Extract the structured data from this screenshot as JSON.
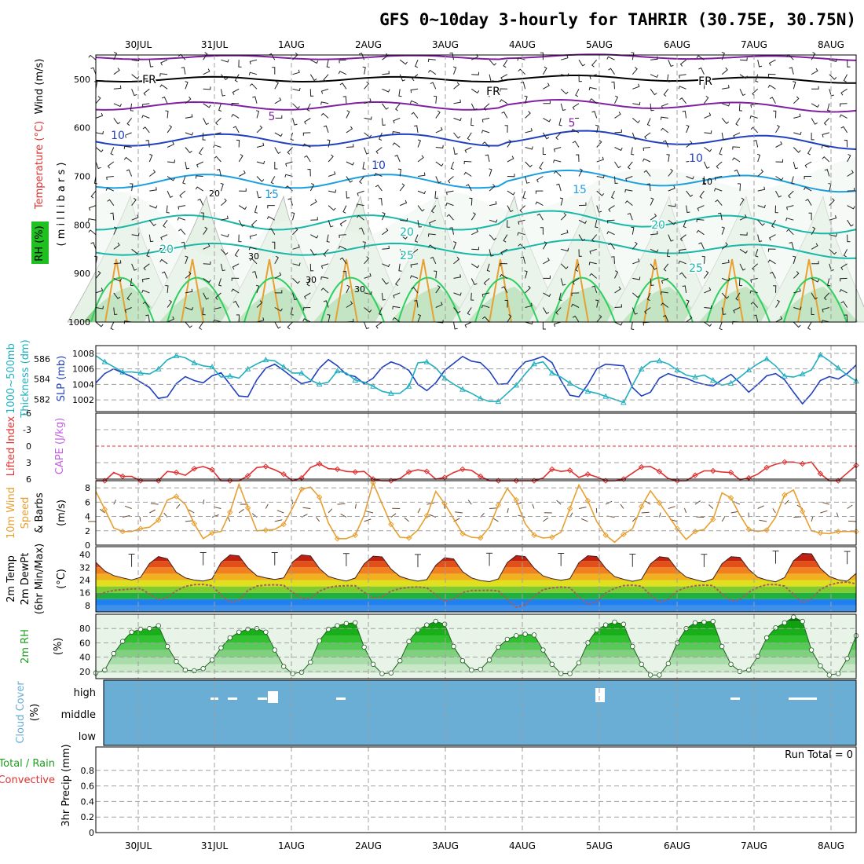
{
  "title": "GFS 0~10day 3-hourly for TAHRIR (30.75E, 30.75N)",
  "dates": [
    "30JUL",
    "31JUL",
    "1AUG",
    "2AUG",
    "3AUG",
    "4AUG",
    "5AUG",
    "6AUG",
    "7AUG",
    "8AUG"
  ],
  "run_total": "Run Total = 0",
  "colors": {
    "orange": "#e8a030",
    "green": "#20a020",
    "blue": "#2040c0",
    "cyan": "#20b0c0",
    "red": "#e03030",
    "purple": "#8020a0",
    "violet": "#c060e0",
    "cloud": "#6aaed6"
  },
  "panels": {
    "upper": {
      "labels": {
        "wind": "Wind (m/s)",
        "temperature": "Temperature (°C)",
        "rh": "RH (%)",
        "pressure": "( m i l l i b a r s )"
      },
      "pressure_ticks": [
        "500",
        "600",
        "700",
        "800",
        "900",
        "1000"
      ],
      "contour_labels": {
        "fr": "FR",
        "t5": "5",
        "t10": "10",
        "t15": "15",
        "t20": "20",
        "t25": "25",
        "rh10": "10",
        "rh20": "20",
        "rh30": "30"
      }
    },
    "pressure": {
      "labels": {
        "thickness": "1000~500mb",
        "thickness2": "Thickness (dm)",
        "slp": "SLP (mb)"
      },
      "thickness_ticks": [
        "586",
        "584",
        "582"
      ],
      "slp_ticks": [
        "1008",
        "1006",
        "1004",
        "1002"
      ]
    },
    "stability": {
      "labels": {
        "li": "Lifted Index",
        "cape": "CAPE (J/kg)"
      },
      "li_ticks": [
        "-6",
        "-3",
        "0",
        "3",
        "6"
      ]
    },
    "wind10": {
      "labels": {
        "l1": "10m Wind",
        "l2": "Speed",
        "l3": "& Barbs",
        "unit": "(m/s)"
      },
      "ticks": [
        "8",
        "6",
        "4",
        "2",
        "0"
      ]
    },
    "temp": {
      "labels": {
        "l1": "2m Temp",
        "l2": "2m DewPt",
        "l3": "(6hr Min/Max)",
        "unit": "(°C)"
      },
      "ticks": [
        "40",
        "32",
        "24",
        "16",
        "8"
      ]
    },
    "rh2m": {
      "labels": {
        "l1": "2m RH",
        "unit": "(%)"
      },
      "ticks": [
        "80",
        "60",
        "40",
        "20"
      ]
    },
    "cloud": {
      "labels": {
        "l1": "Cloud Cover",
        "unit": "(%)"
      },
      "levels": [
        "high",
        "middle",
        "low"
      ]
    },
    "precip": {
      "labels": {
        "l1": "Total / Rain",
        "l2": "Convective",
        "unit": "3hr Precip (mm)"
      },
      "ticks": [
        "0.8",
        "0.6",
        "0.4",
        "0.2",
        "0"
      ]
    }
  },
  "chart_data": [
    {
      "type": "line",
      "panel": "sea_level_pressure_and_thickness",
      "x_unit": "3-hourly forecast steps from 29JUL 12Z",
      "series": [
        {
          "name": "SLP (mb)",
          "color": "#2040c0",
          "values": [
            1004.2,
            1005.4,
            1006.0,
            1005.5,
            1005.0,
            1004.3,
            1003.6,
            1002.2,
            1002.4,
            1004.1,
            1005.0,
            1004.5,
            1004.2,
            1005.1,
            1005.5,
            1004.0,
            1002.5,
            1002.4,
            1004.6,
            1006.1,
            1006.6,
            1005.8,
            1004.9,
            1004.1,
            1004.4,
            1006.1,
            1007.2,
            1006.4,
            1005.3,
            1005.0,
            1004.1,
            1004.8,
            1006.2,
            1006.9,
            1006.5,
            1005.8,
            1004.0,
            1003.2,
            1004.2,
            1005.8,
            1006.7,
            1007.6,
            1007.0,
            1006.8,
            1005.7,
            1004.0,
            1004.1,
            1005.7,
            1006.9,
            1007.2,
            1007.6,
            1006.8,
            1004.5,
            1002.6,
            1002.4,
            1004.0,
            1006.0,
            1006.6,
            1006.5,
            1006.4,
            1003.6,
            1002.5,
            1003.0,
            1004.8,
            1005.4,
            1005.0,
            1004.8,
            1004.3,
            1004.0,
            1003.8,
            1004.6,
            1005.3,
            1004.2,
            1003.0,
            1004.0,
            1005.1,
            1005.4,
            1004.6,
            1003.0,
            1001.5,
            1002.8,
            1004.5,
            1005.0,
            1004.7,
            1005.4,
            1006.5
          ]
        },
        {
          "name": "1000~500mb Thickness (dm)",
          "color": "#20b0c0",
          "values": [
            586.3,
            585.7,
            585.2,
            584.7,
            584.7,
            584.6,
            584.5,
            585.0,
            585.9,
            586.3,
            586.1,
            585.6,
            585.3,
            585.2,
            584.2,
            584.3,
            584.1,
            585.0,
            585.5,
            585.9,
            585.8,
            585.2,
            584.6,
            584.6,
            583.9,
            583.5,
            583.7,
            584.8,
            584.6,
            583.9,
            583.7,
            583.3,
            582.8,
            582.6,
            582.6,
            583.3,
            585.6,
            585.7,
            585.1,
            584.1,
            583.5,
            583.0,
            582.6,
            582.1,
            581.8,
            581.8,
            582.6,
            583.4,
            584.5,
            585.5,
            585.7,
            584.6,
            584.2,
            583.6,
            583.1,
            582.8,
            582.6,
            582.3,
            582.0,
            581.7,
            583.4,
            585.0,
            585.7,
            585.8,
            585.5,
            584.9,
            584.4,
            584.2,
            584.4,
            583.9,
            583.4,
            583.6,
            584.2,
            584.9,
            585.5,
            586.0,
            585.3,
            584.3,
            584.2,
            584.5,
            584.9,
            586.4,
            585.8,
            585.1,
            584.4,
            583.8
          ]
        }
      ]
    },
    {
      "type": "line",
      "panel": "lifted_index",
      "x_unit": "3-hourly forecast steps from 29JUL 12Z",
      "series": [
        {
          "name": "Lifted Index",
          "color": "#e03030",
          "values": [
            6.5,
            6.8,
            4.8,
            5.5,
            5.5,
            6.3,
            7.5,
            7.0,
            4.6,
            4.8,
            5.3,
            4.1,
            3.7,
            4.3,
            6.7,
            7.5,
            7.2,
            5.4,
            3.9,
            3.7,
            4.3,
            5.1,
            7.2,
            5.8,
            3.9,
            3.2,
            4.1,
            4.2,
            4.6,
            4.7,
            4.6,
            6.0,
            6.5,
            7.0,
            5.9,
            4.7,
            4.3,
            4.6,
            6.0,
            5.7,
            4.8,
            4.2,
            4.4,
            5.5,
            6.3,
            6.8,
            6.7,
            7.5,
            6.3,
            7.0,
            5.8,
            4.2,
            4.6,
            4.4,
            5.7,
            5.1,
            5.6,
            6.5,
            6.5,
            6.0,
            4.9,
            3.8,
            3.7,
            4.6,
            5.9,
            6.8,
            6.7,
            5.3,
            4.5,
            4.5,
            4.7,
            4.8,
            6.1,
            5.8,
            5.1,
            3.9,
            3.3,
            2.9,
            2.9,
            3.2,
            2.9,
            5.0,
            6.4,
            6.8,
            4.9,
            3.5
          ]
        }
      ]
    },
    {
      "type": "line",
      "panel": "10m_wind_speed",
      "x_unit": "3-hourly forecast steps from 29JUL 12Z",
      "series": [
        {
          "name": "10m Wind Speed (m/s)",
          "color": "#e8a030",
          "values": [
            7.5,
            5.0,
            2.4,
            1.9,
            1.9,
            2.3,
            2.5,
            3.5,
            6.3,
            6.8,
            5.7,
            3.0,
            0.9,
            1.7,
            1.9,
            4.6,
            8.5,
            5.2,
            2.0,
            2.1,
            2.2,
            2.9,
            5.2,
            7.8,
            8.1,
            6.7,
            3.1,
            0.9,
            0.9,
            1.4,
            4.2,
            8.7,
            5.8,
            2.9,
            1.1,
            1.0,
            2.1,
            4.1,
            7.5,
            5.8,
            3.7,
            1.6,
            1.1,
            1.0,
            2.5,
            5.6,
            7.9,
            6.3,
            3.0,
            1.4,
            1.0,
            1.1,
            1.8,
            5.1,
            8.4,
            6.2,
            3.3,
            1.4,
            0.4,
            1.5,
            2.3,
            5.4,
            7.6,
            5.9,
            4.1,
            2.3,
            0.8,
            1.9,
            2.2,
            3.6,
            7.3,
            6.6,
            4.2,
            2.2,
            1.9,
            2.1,
            3.9,
            7.0,
            7.7,
            4.7,
            2.0,
            1.7,
            1.6,
            1.9,
            1.9,
            1.9
          ]
        }
      ]
    },
    {
      "type": "area",
      "panel": "2m_temperature_dewpoint",
      "x_unit": "3-hourly forecast steps from 29JUL 12Z",
      "series": [
        {
          "name": "2m Temp (°C)",
          "color": "#c81e1e",
          "values": [
            35.2,
            29.7,
            26.8,
            25.4,
            24.1,
            25.7,
            34.4,
            38.8,
            37.4,
            28.9,
            25.4,
            24.0,
            23.4,
            24.8,
            35.0,
            39.8,
            39.2,
            31.7,
            26.7,
            25.4,
            24.4,
            25.4,
            35.3,
            39.8,
            39.2,
            31.3,
            26.3,
            24.6,
            23.4,
            25.3,
            34.2,
            39.0,
            38.6,
            30.9,
            26.3,
            24.5,
            23.3,
            24.3,
            33.3,
            38.1,
            37.3,
            29.3,
            25.4,
            23.7,
            23.0,
            24.7,
            35.0,
            39.4,
            38.8,
            31.5,
            26.6,
            24.9,
            23.9,
            24.9,
            34.9,
            39.3,
            38.8,
            31.4,
            26.2,
            24.5,
            23.2,
            24.5,
            34.1,
            38.7,
            38.0,
            30.6,
            25.9,
            24.3,
            22.9,
            24.8,
            34.3,
            38.7,
            38.3,
            30.7,
            25.8,
            24.0,
            22.9,
            25.6,
            36.1,
            40.8,
            40.5,
            31.4,
            26.3,
            24.2,
            23.3,
            28.2
          ]
        },
        {
          "name": "2m DewPt (°C)",
          "color": "#906060",
          "values": [
            13.9,
            16.2,
            17.5,
            18.0,
            18.4,
            18.6,
            15.2,
            11.6,
            13.0,
            17.3,
            20.0,
            21.1,
            21.3,
            20.4,
            14.6,
            10.1,
            11.1,
            17.5,
            20.2,
            20.9,
            21.0,
            20.7,
            16.3,
            12.4,
            12.3,
            17.1,
            19.3,
            20.2,
            20.5,
            20.4,
            16.3,
            12.8,
            13.4,
            17.1,
            18.6,
            19.4,
            19.6,
            19.2,
            14.6,
            10.6,
            12.1,
            16.2,
            17.4,
            17.5,
            17.6,
            17.2,
            11.8,
            6.9,
            8.2,
            13.8,
            18.0,
            19.1,
            19.6,
            19.2,
            13.5,
            8.8,
            10.4,
            15.8,
            18.8,
            20.5,
            20.8,
            20.1,
            14.6,
            10.1,
            11.8,
            17.1,
            19.4,
            20.4,
            20.8,
            20.5,
            15.2,
            10.9,
            11.7,
            16.3,
            19.4,
            21.1,
            21.2,
            20.2,
            15.0,
            9.8,
            12.3,
            18.0,
            20.9,
            22.3,
            22.8,
            21.6
          ]
        }
      ],
      "min_max_bars": true
    },
    {
      "type": "area",
      "panel": "2m_relative_humidity",
      "x_unit": "3-hourly forecast steps from 29JUL 12Z",
      "series": [
        {
          "name": "2m RH (%)",
          "color": "#208020",
          "values": [
            18,
            22,
            45,
            62,
            75,
            79,
            80,
            84,
            55,
            34,
            22,
            21,
            24,
            36,
            53,
            67,
            75,
            79,
            80,
            75,
            50,
            27,
            17,
            19,
            33,
            63,
            79,
            84,
            87,
            88,
            54,
            30,
            17,
            18,
            35,
            62,
            78,
            85,
            90,
            86,
            55,
            35,
            22,
            23,
            36,
            54,
            65,
            70,
            72,
            71,
            50,
            30,
            17,
            17,
            32,
            60,
            78,
            85,
            89,
            86,
            55,
            30,
            15,
            15,
            31,
            60,
            80,
            88,
            89,
            90,
            55,
            30,
            20,
            22,
            41,
            67,
            81,
            88,
            96,
            90,
            50,
            28,
            15,
            17,
            38,
            70
          ]
        }
      ]
    },
    {
      "type": "heatmap",
      "panel": "cloud_cover",
      "levels": [
        "high",
        "middle",
        "low"
      ],
      "description_values": {
        "high_cloud_steps": [
          12,
          14,
          17,
          18,
          27,
          54,
          70,
          78,
          79,
          80
        ]
      }
    },
    {
      "type": "bar",
      "panel": "3hr_precipitation",
      "ylim": [
        0,
        1
      ],
      "values": []
    }
  ]
}
